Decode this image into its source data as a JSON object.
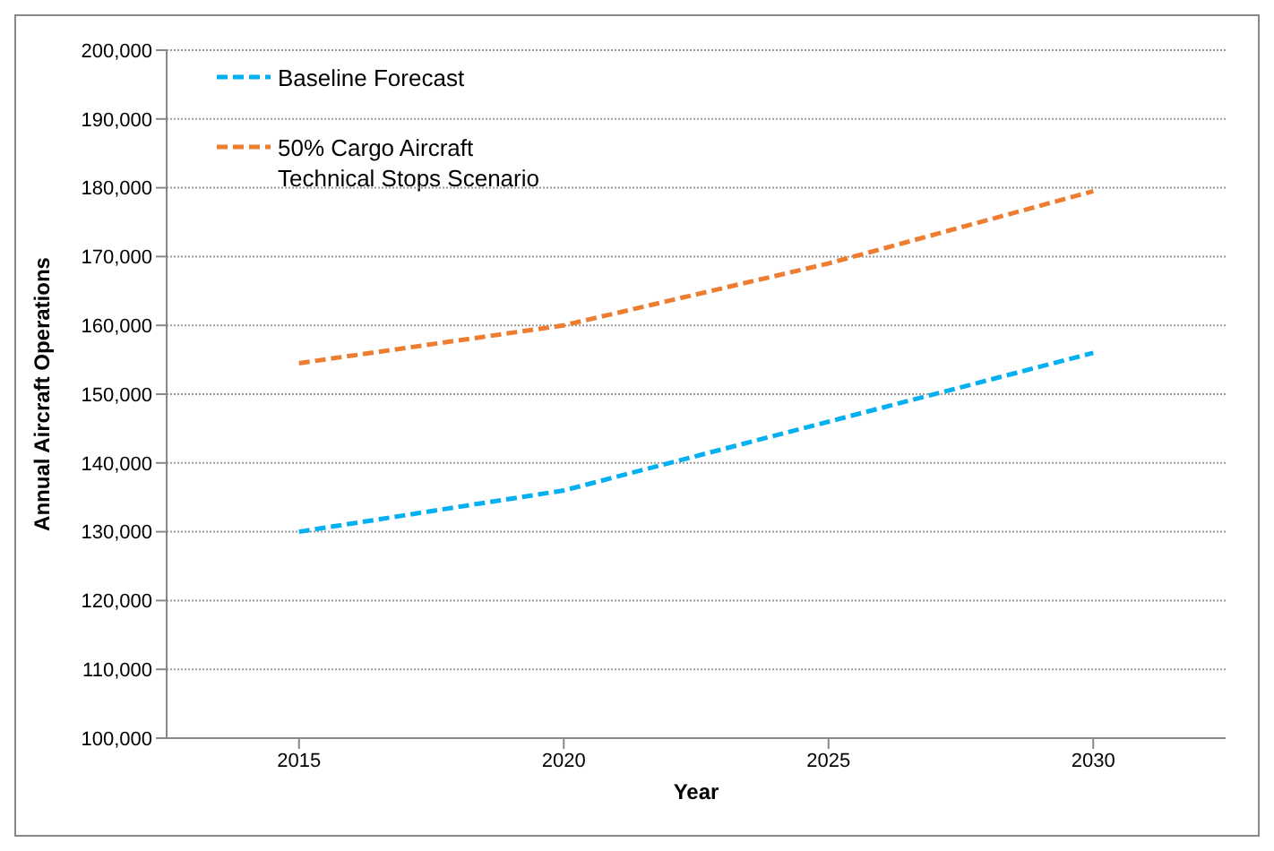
{
  "chart_data": {
    "type": "line",
    "xlabel": "Year",
    "ylabel": "Annual Aircraft Operations",
    "categories": [
      "2015",
      "2020",
      "2025",
      "2030"
    ],
    "series": [
      {
        "name": "Baseline Forecast",
        "color": "#00b0f0",
        "values": [
          130000,
          136000,
          146000,
          156000
        ]
      },
      {
        "name": "50% Cargo Aircraft Technical Stops Scenario",
        "color": "#ed7d31",
        "values": [
          154500,
          160000,
          169000,
          179500
        ]
      }
    ],
    "ylim": [
      100000,
      200000
    ],
    "yticks": [
      {
        "value": 100000,
        "label": "100,000"
      },
      {
        "value": 110000,
        "label": "110,000"
      },
      {
        "value": 120000,
        "label": "120,000"
      },
      {
        "value": 130000,
        "label": "130,000"
      },
      {
        "value": 140000,
        "label": "140,000"
      },
      {
        "value": 150000,
        "label": "150,000"
      },
      {
        "value": 160000,
        "label": "160,000"
      },
      {
        "value": 170000,
        "label": "170,000"
      },
      {
        "value": 180000,
        "label": "180,000"
      },
      {
        "value": 190000,
        "label": "190,000"
      },
      {
        "value": 200000,
        "label": "200,000"
      }
    ],
    "grid": "y",
    "legend": "top left",
    "marker": "none",
    "line_style": "dashed"
  }
}
